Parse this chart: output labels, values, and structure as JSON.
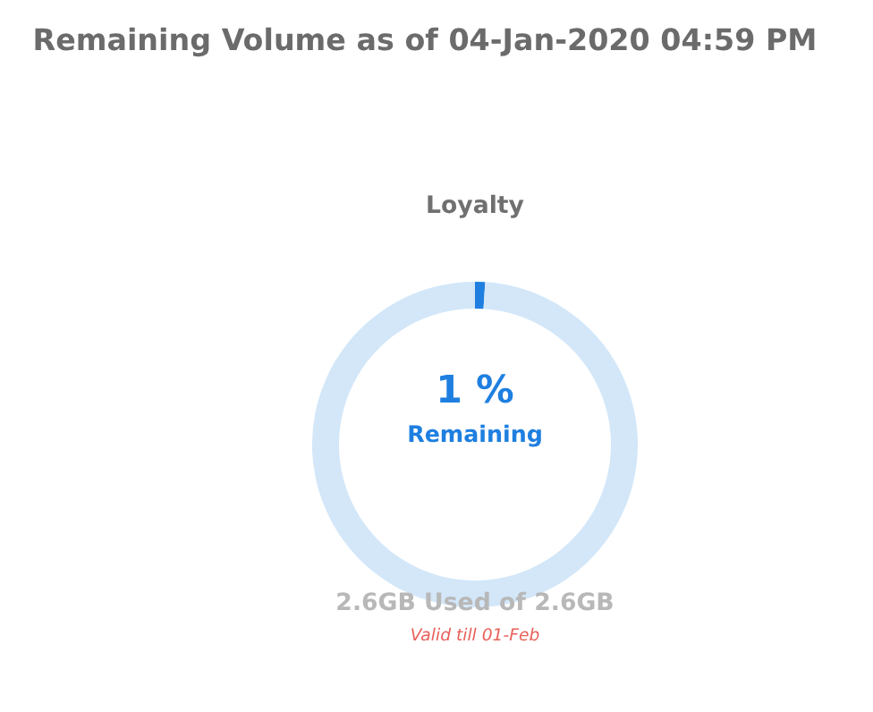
{
  "chart_data": {
    "type": "donut",
    "title": "Remaining Volume as of 04-Jan-2020 04:59 PM",
    "subtitle": "Loyalty",
    "categories": [
      "Remaining",
      null
    ],
    "values": [
      1,
      99
    ],
    "colors": [
      "#1e7fe0",
      "#d3e7f9"
    ],
    "value_labels": [
      "1 %",
      null
    ],
    "annotations": [
      "2.6GB Used of 2.6GB",
      "Valid till 01-Feb"
    ]
  }
}
